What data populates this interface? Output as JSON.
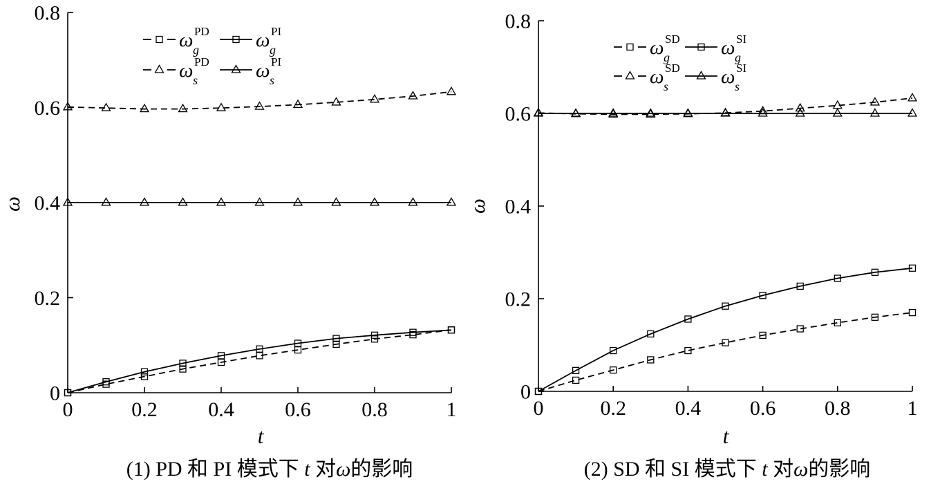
{
  "colors": {
    "ink": "#000000",
    "background": "#ffffff"
  },
  "chart_data": [
    {
      "type": "line",
      "xlabel": "t",
      "ylabel": "ω",
      "xlim": [
        0,
        1
      ],
      "ylim": [
        0,
        0.8
      ],
      "x_ticks": [
        0,
        0.2,
        0.4,
        0.6,
        0.8,
        1
      ],
      "x_tick_labels": [
        "0",
        "0.2",
        "0.4",
        "0.6",
        "0.8",
        "1"
      ],
      "y_ticks": [
        0,
        0.2,
        0.4,
        0.6,
        0.8
      ],
      "y_tick_labels": [
        "0",
        "0.2",
        "0.4",
        "0.6",
        "0.8"
      ],
      "grid": false,
      "legend_position": "top-left",
      "x": [
        0,
        0.1,
        0.2,
        0.3,
        0.4,
        0.5,
        0.6,
        0.7,
        0.8,
        0.9,
        1
      ],
      "series": [
        {
          "symbol": "ω",
          "sub": "g",
          "sup": "PD",
          "line": "dashed",
          "marker": "square",
          "values": [
            0,
            0.018,
            0.034,
            0.05,
            0.064,
            0.078,
            0.09,
            0.102,
            0.113,
            0.122,
            0.132
          ]
        },
        {
          "symbol": "ω",
          "sub": "g",
          "sup": "PI",
          "line": "solid",
          "marker": "square",
          "values": [
            0,
            0.023,
            0.044,
            0.062,
            0.078,
            0.092,
            0.104,
            0.114,
            0.121,
            0.127,
            0.132
          ]
        },
        {
          "symbol": "ω",
          "sub": "s",
          "sup": "PD",
          "line": "dashed",
          "marker": "triangle",
          "values": [
            0.601,
            0.599,
            0.597,
            0.597,
            0.599,
            0.602,
            0.606,
            0.611,
            0.617,
            0.624,
            0.633
          ]
        },
        {
          "symbol": "ω",
          "sub": "s",
          "sup": "PI",
          "line": "solid",
          "marker": "triangle",
          "values": [
            0.4,
            0.4,
            0.4,
            0.4,
            0.4,
            0.4,
            0.4,
            0.4,
            0.4,
            0.4,
            0.4
          ]
        }
      ],
      "caption": [
        {
          "text": "(1) PD 和 PI 模式下 ",
          "italic": false
        },
        {
          "text": "t",
          "italic": true
        },
        {
          "text": " 对",
          "italic": false
        },
        {
          "text": "ω",
          "italic": true
        },
        {
          "text": "的影响",
          "italic": false
        }
      ]
    },
    {
      "type": "line",
      "xlabel": "t",
      "ylabel": "ω",
      "xlim": [
        0,
        1
      ],
      "ylim": [
        0,
        0.8
      ],
      "x_ticks": [
        0,
        0.2,
        0.4,
        0.6,
        0.8,
        1
      ],
      "x_tick_labels": [
        "0",
        "0.2",
        "0.4",
        "0.6",
        "0.8",
        "1"
      ],
      "y_ticks": [
        0,
        0.2,
        0.4,
        0.6,
        0.8
      ],
      "y_tick_labels": [
        "0",
        "0.2",
        "0.4",
        "0.6",
        "0.8"
      ],
      "grid": false,
      "legend_position": "top-left",
      "x": [
        0,
        0.1,
        0.2,
        0.3,
        0.4,
        0.5,
        0.6,
        0.7,
        0.8,
        0.9,
        1
      ],
      "series": [
        {
          "symbol": "ω",
          "sub": "g",
          "sup": "SD",
          "line": "dashed",
          "marker": "square",
          "values": [
            0,
            0.024,
            0.046,
            0.068,
            0.088,
            0.105,
            0.121,
            0.135,
            0.148,
            0.16,
            0.17
          ]
        },
        {
          "symbol": "ω",
          "sub": "g",
          "sup": "SI",
          "line": "solid",
          "marker": "square",
          "values": [
            0,
            0.045,
            0.088,
            0.124,
            0.156,
            0.184,
            0.207,
            0.227,
            0.244,
            0.257,
            0.266
          ]
        },
        {
          "symbol": "ω",
          "sub": "s",
          "sup": "SD",
          "line": "dashed",
          "marker": "triangle",
          "values": [
            0.601,
            0.599,
            0.598,
            0.598,
            0.599,
            0.601,
            0.605,
            0.611,
            0.617,
            0.624,
            0.633
          ]
        },
        {
          "symbol": "ω",
          "sub": "s",
          "sup": "SI",
          "line": "solid",
          "marker": "triangle",
          "values": [
            0.6,
            0.6,
            0.6,
            0.6,
            0.6,
            0.6,
            0.6,
            0.6,
            0.6,
            0.6,
            0.6
          ]
        }
      ],
      "caption": [
        {
          "text": "(2) SD 和 SI 模式下 ",
          "italic": false
        },
        {
          "text": "t",
          "italic": true
        },
        {
          "text": " 对",
          "italic": false
        },
        {
          "text": "ω",
          "italic": true
        },
        {
          "text": "的影响",
          "italic": false
        }
      ]
    }
  ]
}
